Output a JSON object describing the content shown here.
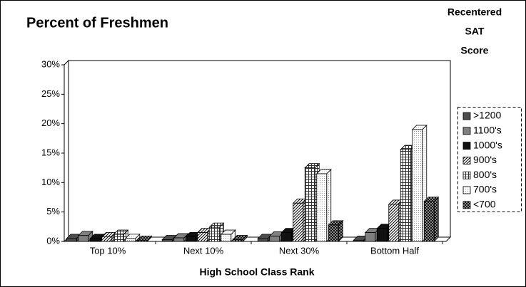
{
  "chart_data": {
    "type": "bar3d",
    "title": "Percent of Freshmen",
    "x_label": "High School Class Rank",
    "legend_title": [
      "Recentered",
      "SAT",
      "Score"
    ],
    "legend": "right",
    "categories": [
      "Top 10%",
      "Next 10%",
      "Next 30%",
      "Bottom Half"
    ],
    "series": [
      {
        "name": ">1200",
        "color": "#4d4d4d",
        "values": [
          0.5,
          0.3,
          0.5,
          0.2
        ]
      },
      {
        "name": "1100's",
        "color": "#808080",
        "values": [
          1.0,
          0.6,
          0.9,
          1.5
        ]
      },
      {
        "name": "1000's",
        "color": "#111111",
        "values": [
          0.5,
          0.8,
          1.5,
          2.2
        ]
      },
      {
        "name": "900's",
        "color": "#ffffff",
        "pattern": "diagonal",
        "values": [
          0.8,
          1.5,
          6.5,
          6.3
        ]
      },
      {
        "name": "800's",
        "color": "#ffffff",
        "pattern": "grid",
        "values": [
          1.2,
          2.4,
          12.5,
          15.6
        ]
      },
      {
        "name": "700's",
        "color": "#ffffff",
        "pattern": "dots",
        "values": [
          0.5,
          1.2,
          11.5,
          19.0
        ]
      },
      {
        "name": "<700",
        "color": "#ffffff",
        "pattern": "cross",
        "values": [
          0.2,
          0.3,
          2.8,
          6.8
        ]
      }
    ],
    "ylim": [
      0,
      30
    ],
    "yticks": [
      {
        "value": 0,
        "label": "0%"
      },
      {
        "value": 5,
        "label": "5%"
      },
      {
        "value": 10,
        "label": "10%"
      },
      {
        "value": 15,
        "label": "15%"
      },
      {
        "value": 20,
        "label": "20%"
      },
      {
        "value": 25,
        "label": "25%"
      },
      {
        "value": 30,
        "label": "30%"
      }
    ]
  }
}
